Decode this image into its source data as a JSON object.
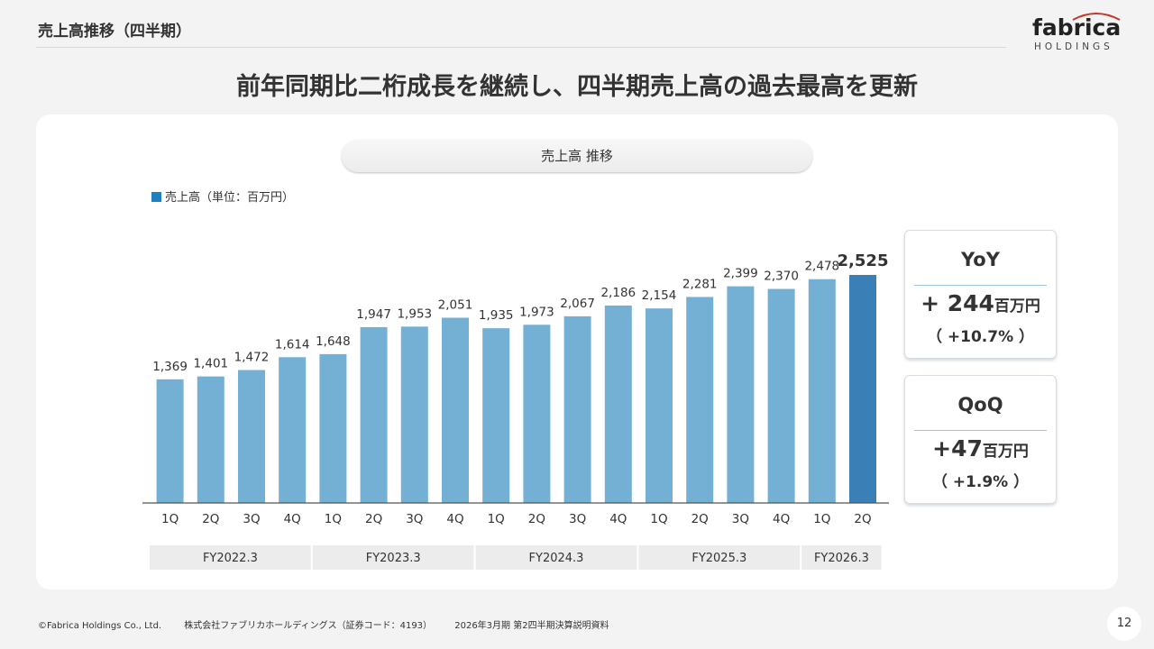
{
  "page": {
    "section_title": "売上高推移（四半期）",
    "headline": "前年同期比二桁成長を継続し、四半期売上高の過去最高を更新",
    "logo_word": "fabrica",
    "logo_sub": "HOLDINGS",
    "page_number": "12"
  },
  "chart_header": {
    "title": "売上高 推移",
    "legend": "売上高（単位：百万円）"
  },
  "chart_data": {
    "type": "bar",
    "title": "売上高 推移",
    "series": [
      {
        "name": "売上高（単位：百万円）",
        "values": [
          1369,
          1401,
          1472,
          1614,
          1648,
          1947,
          1953,
          2051,
          1935,
          1973,
          2067,
          2186,
          2154,
          2281,
          2399,
          2370,
          2478,
          2525
        ]
      }
    ],
    "value_labels": [
      "1,369",
      "1,401",
      "1,472",
      "1,614",
      "1,648",
      "1,947",
      "1,953",
      "2,051",
      "1,935",
      "1,973",
      "2,067",
      "2,186",
      "2,154",
      "2,281",
      "2,399",
      "2,370",
      "2,478",
      "2,525"
    ],
    "categories": [
      "1Q",
      "2Q",
      "3Q",
      "4Q",
      "1Q",
      "2Q",
      "3Q",
      "4Q",
      "1Q",
      "2Q",
      "3Q",
      "4Q",
      "1Q",
      "2Q",
      "3Q",
      "4Q",
      "1Q",
      "2Q"
    ],
    "fiscal_years": [
      "FY2022.3",
      "FY2023.3",
      "FY2024.3",
      "FY2025.3",
      "FY2026.3"
    ],
    "fiscal_year_quarter_counts": [
      4,
      4,
      4,
      4,
      2
    ],
    "ylim": [
      0,
      2700
    ],
    "highlight_index": 17,
    "colors": {
      "bar": "#74b0d4",
      "highlight": "#3a7fb5",
      "baseline": "#555555",
      "group_bg": "#ececec"
    }
  },
  "yoy": {
    "title": "YoY",
    "amount": "+ 244",
    "unit": "百万円",
    "pct": "（ +10.7% ）"
  },
  "qoq": {
    "title": "QoQ",
    "amount": "+47",
    "unit": "百万円",
    "pct": "（  +1.9%  ）"
  },
  "footer": {
    "copyright": "©Fabrica Holdings Co., Ltd.",
    "company": "株式会社ファブリカホールディングス（証券コード：4193）",
    "document": "2026年3月期 第2四半期決算説明資料"
  }
}
